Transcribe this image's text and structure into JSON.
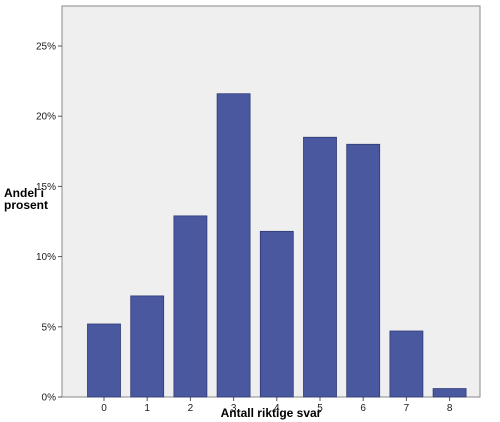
{
  "chart_data": {
    "type": "bar",
    "categories": [
      "0",
      "1",
      "2",
      "3",
      "4",
      "5",
      "6",
      "7",
      "8"
    ],
    "values": [
      5.2,
      7.2,
      12.9,
      21.6,
      11.8,
      18.5,
      18.0,
      4.7,
      0.6
    ],
    "xlabel": "Antall riktige svar",
    "ylabel_lines": [
      "Andel i",
      "prosent"
    ],
    "ylim": [
      0,
      25
    ],
    "yticks": [
      0,
      5,
      10,
      15,
      20,
      25
    ],
    "ytick_labels": [
      "0%",
      "5%",
      "10%",
      "15%",
      "20%",
      "25%"
    ],
    "grid": false,
    "legend": "none",
    "colors": {
      "bar_fill": "#4a58a0",
      "bar_stroke": "#2f3a75",
      "plot_background": "#efefef",
      "plot_border": "#8a8a8a",
      "text": "#000000"
    }
  }
}
